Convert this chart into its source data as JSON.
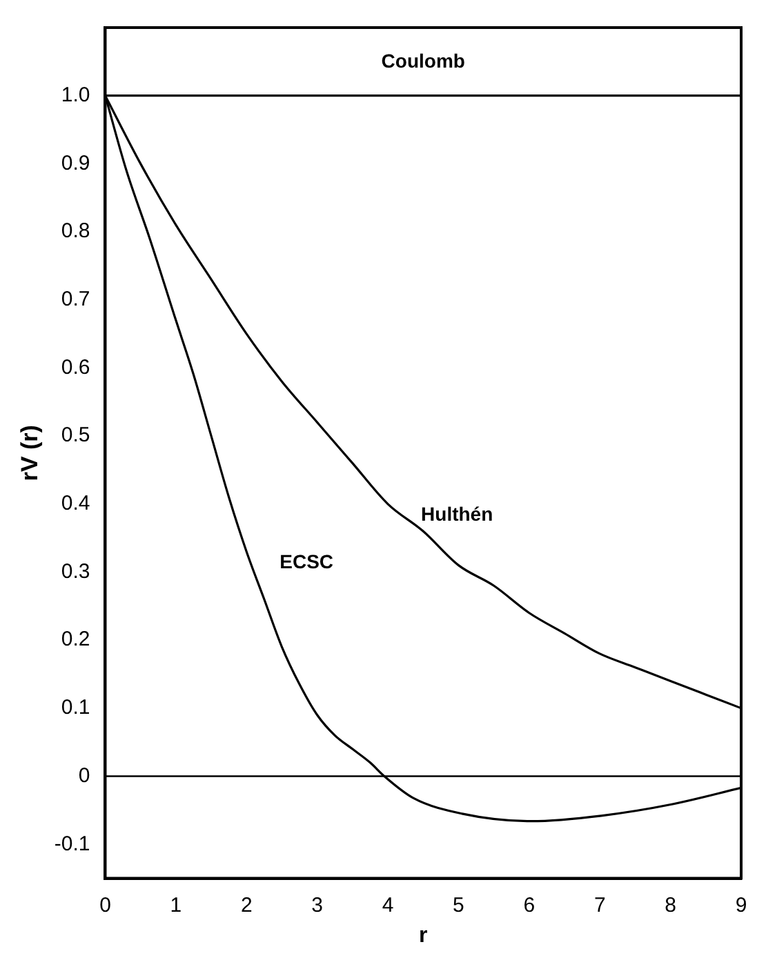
{
  "chart_data": {
    "type": "line",
    "xlabel": "r",
    "ylabel": "rV (r)",
    "xlim": [
      0,
      9
    ],
    "ylim": [
      -0.15,
      1.1
    ],
    "xticks": [
      0,
      1,
      2,
      3,
      4,
      5,
      6,
      7,
      8,
      9
    ],
    "yticks": [
      -0.1,
      0,
      0.1,
      0.2,
      0.3,
      0.4,
      0.5,
      0.6,
      0.7,
      0.8,
      0.9,
      {
        "value": 1,
        "label": "1.0"
      }
    ],
    "grid": false,
    "legend": false,
    "marker": "none",
    "line_style": "solid",
    "series": [
      {
        "name": "Coulomb",
        "color": "#000000",
        "x": [
          0,
          9
        ],
        "values": [
          1,
          1
        ]
      },
      {
        "name": "Hulthén",
        "color": "#000000",
        "x": [
          0,
          0.5,
          1,
          1.5,
          2,
          2.5,
          3,
          3.5,
          4,
          4.5,
          5,
          5.5,
          6,
          6.5,
          7,
          7.5,
          8,
          8.5,
          9
        ],
        "values": [
          1,
          0.9,
          0.81,
          0.73,
          0.65,
          0.58,
          0.52,
          0.46,
          0.4,
          0.36,
          0.31,
          0.28,
          0.24,
          0.21,
          0.18,
          0.16,
          0.14,
          0.12,
          0.1
        ]
      },
      {
        "name": "ECSC",
        "color": "#000000",
        "x": [
          0,
          0.3,
          0.63,
          1,
          1.25,
          1.5,
          1.75,
          2,
          2.25,
          2.5,
          2.75,
          3,
          3.25,
          3.5,
          3.75,
          3.95,
          4.36,
          5.05,
          6.03,
          7.02,
          8.03,
          9
        ],
        "values": [
          1,
          0.89,
          0.79,
          0.67,
          0.59,
          0.5,
          0.41,
          0.33,
          0.26,
          0.19,
          0.135,
          0.09,
          0.06,
          0.04,
          0.02,
          0,
          -0.032,
          -0.055,
          -0.066,
          -0.058,
          -0.041,
          -0.017
        ]
      }
    ],
    "ref_lines": [
      {
        "axis": "y",
        "value": 0
      }
    ]
  }
}
